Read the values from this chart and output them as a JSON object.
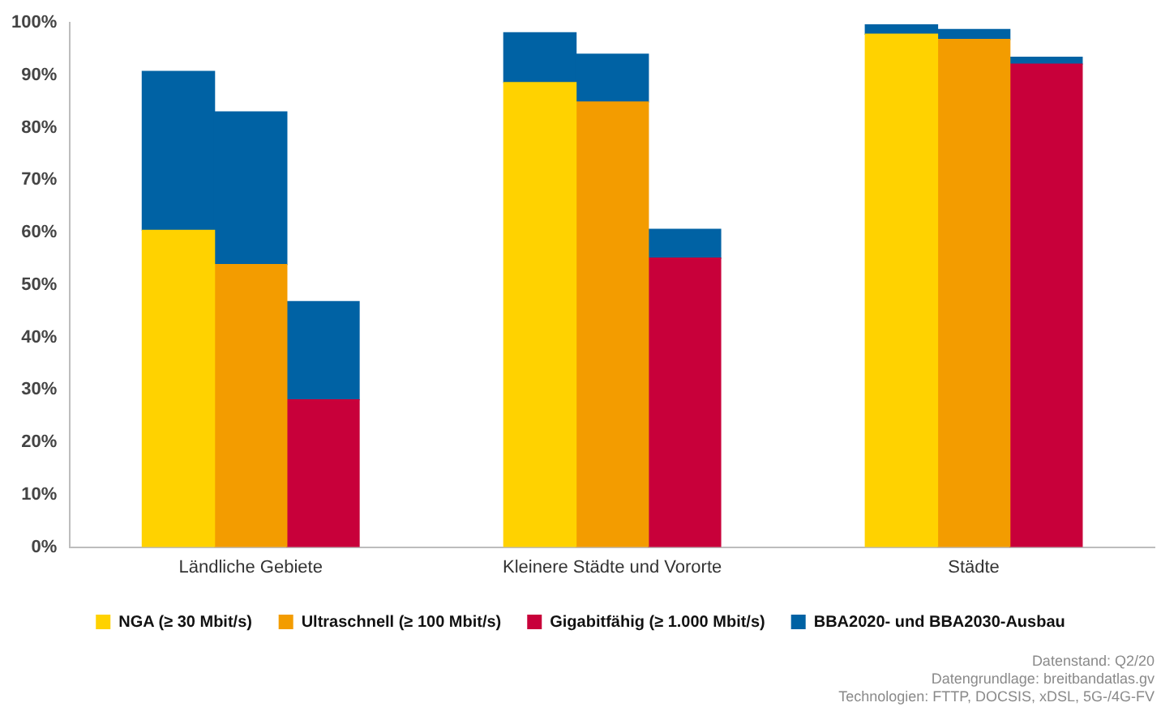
{
  "chart_data": {
    "type": "bar",
    "stacked": true,
    "categories": [
      null,
      null,
      "Ländliche Gebiete",
      null,
      null,
      null,
      null,
      "Kleinere Städte und Vororte",
      null,
      null,
      null,
      null,
      "Städte",
      null,
      null
    ],
    "series": [
      {
        "name": "NGA (≥ 30 Mbit/s)",
        "color": "#ffd200",
        "values": [
          null,
          60.4,
          null,
          null,
          null,
          null,
          88.6,
          null,
          null,
          null,
          null,
          97.8,
          null,
          null,
          null
        ]
      },
      {
        "name": "Ultraschnell (≥ 100 Mbit/s)",
        "color": "#f39c00",
        "values": [
          null,
          null,
          53.9,
          null,
          null,
          null,
          null,
          84.9,
          null,
          null,
          null,
          null,
          96.8,
          null,
          null
        ]
      },
      {
        "name": "Gigabitfähig (≥ 1.000 Mbit/s)",
        "color": "#c8003a",
        "values": [
          null,
          null,
          null,
          28.1,
          null,
          null,
          null,
          null,
          55.1,
          null,
          null,
          null,
          null,
          92.1,
          null
        ]
      },
      {
        "name": "BBA2020- und BBA2030-Ausbau",
        "color": "#0062a4",
        "values": [
          null,
          30.3,
          29.1,
          18.7,
          null,
          null,
          9.5,
          9.1,
          5.5,
          null,
          null,
          1.8,
          1.9,
          1.3,
          null
        ]
      }
    ],
    "ylim": [
      0,
      100
    ],
    "yticks": [
      {
        "value": 0,
        "label": "0%"
      },
      {
        "value": 10,
        "label": "10%"
      },
      {
        "value": 20,
        "label": "20%"
      },
      {
        "value": 30,
        "label": "30%"
      },
      {
        "value": 40,
        "label": "40%"
      },
      {
        "value": 50,
        "label": "50%"
      },
      {
        "value": 60,
        "label": "60%"
      },
      {
        "value": 70,
        "label": "70%"
      },
      {
        "value": 80,
        "label": "80%"
      },
      {
        "value": 90,
        "label": "90%"
      },
      {
        "value": 100,
        "label": "100%"
      }
    ],
    "legend": "bottom",
    "annotations": [
      "Datenstand: Q2/20",
      "Datengrundlage: breitbandatlas.gv",
      "Technologien: FTTP, DOCSIS, xDSL, 5G-/4G-FV"
    ]
  }
}
